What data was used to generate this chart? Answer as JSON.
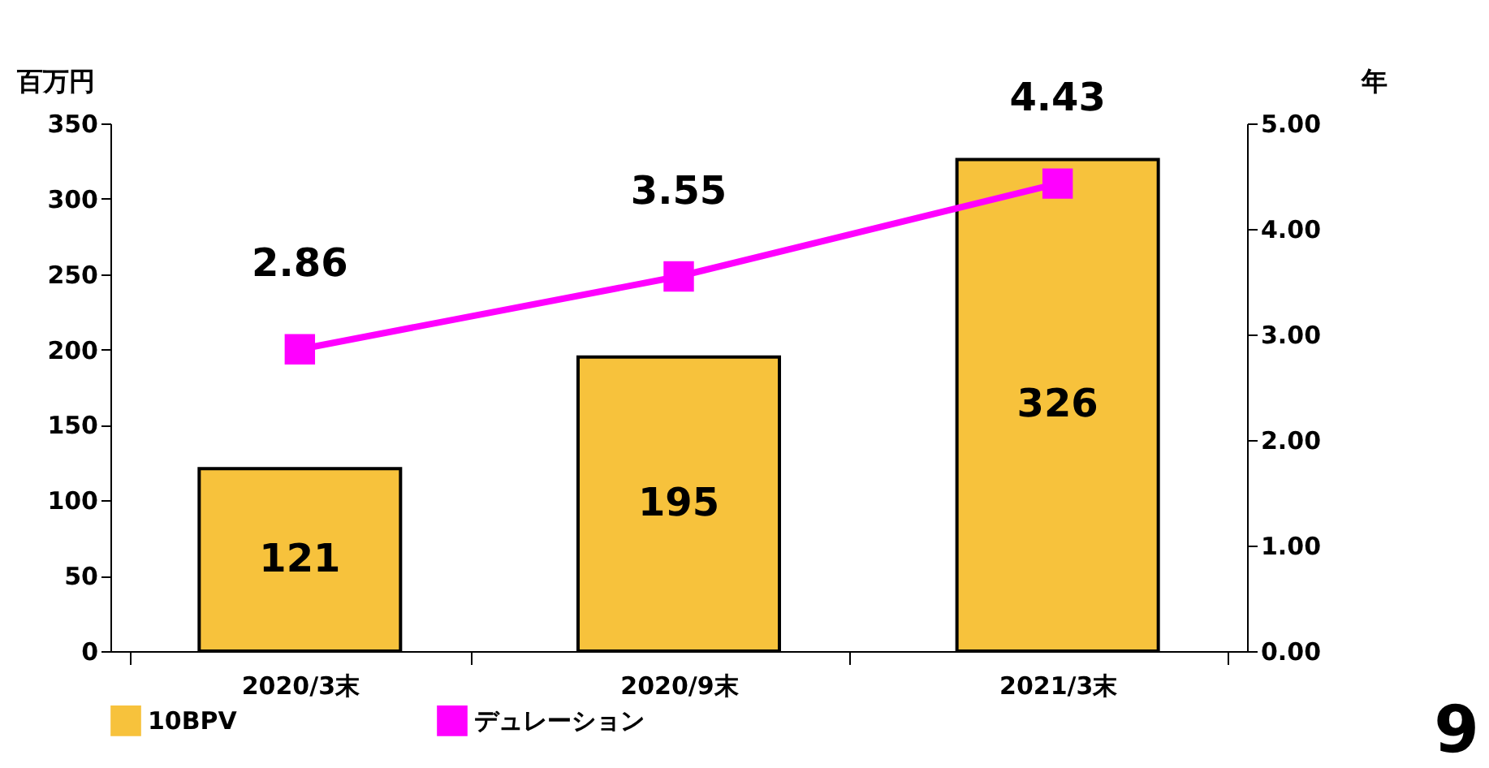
{
  "chart_data": {
    "type": "bar",
    "ylabel": "百万円",
    "y2label": "年",
    "categories": [
      "2020/3末",
      "2020/9末",
      "2021/3末"
    ],
    "series": [
      {
        "name": "10BPV",
        "color": "#f7c23c",
        "values": [
          121,
          195,
          326
        ]
      },
      {
        "name": "デュレーション",
        "type": "line",
        "axis": "y2",
        "color": "#ff00ff",
        "values": [
          2.86,
          3.55,
          4.43
        ]
      }
    ],
    "ylim": [
      0,
      350
    ],
    "yticks": [
      0,
      50,
      100,
      150,
      200,
      250,
      300,
      350
    ],
    "y2lim": [
      0,
      5
    ],
    "y2ticks": [
      {
        "value": 0,
        "label": "0.00"
      },
      {
        "value": 1,
        "label": "1.00"
      },
      {
        "value": 2,
        "label": "2.00"
      },
      {
        "value": 3,
        "label": "3.00"
      },
      {
        "value": 4,
        "label": "4.00"
      },
      {
        "value": 5,
        "label": "5.00"
      }
    ],
    "data_labels": true,
    "marker": "square",
    "legend": "bottom",
    "grid": false,
    "annotations": [
      "9"
    ]
  }
}
